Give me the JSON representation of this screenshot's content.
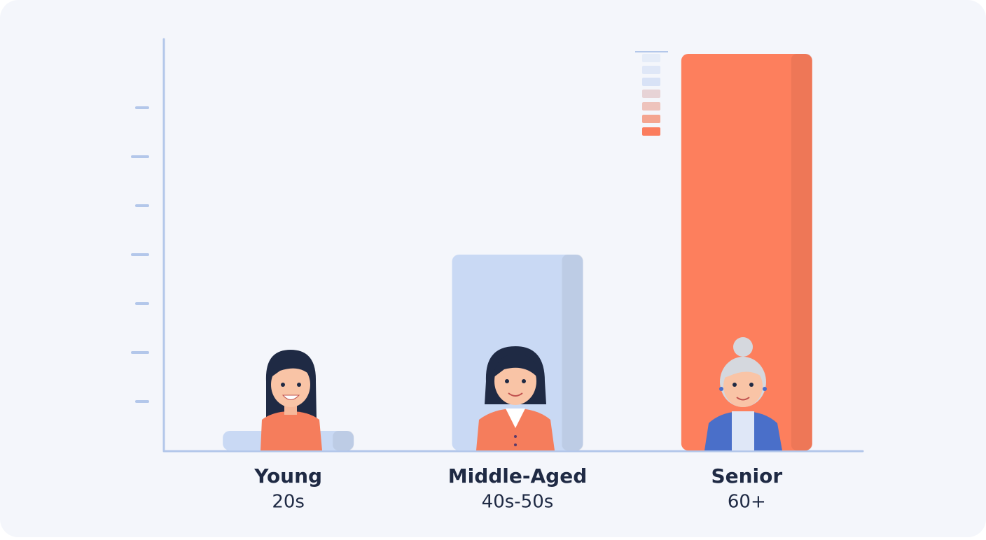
{
  "chart_data": {
    "type": "bar",
    "categories": [
      "Young",
      "Middle-Aged",
      "Senior"
    ],
    "age_ranges": [
      "20s",
      "40s-50s",
      "60+"
    ],
    "values": [
      0.4,
      4.0,
      8.1
    ],
    "colors": [
      "#c9d9f4",
      "#c9d9f4",
      "#fd7f5d"
    ],
    "ylim": [
      0,
      8.4
    ],
    "yticks": [
      1,
      2,
      3,
      4,
      5,
      6,
      7
    ],
    "axis_color": "#b3c7ea"
  }
}
